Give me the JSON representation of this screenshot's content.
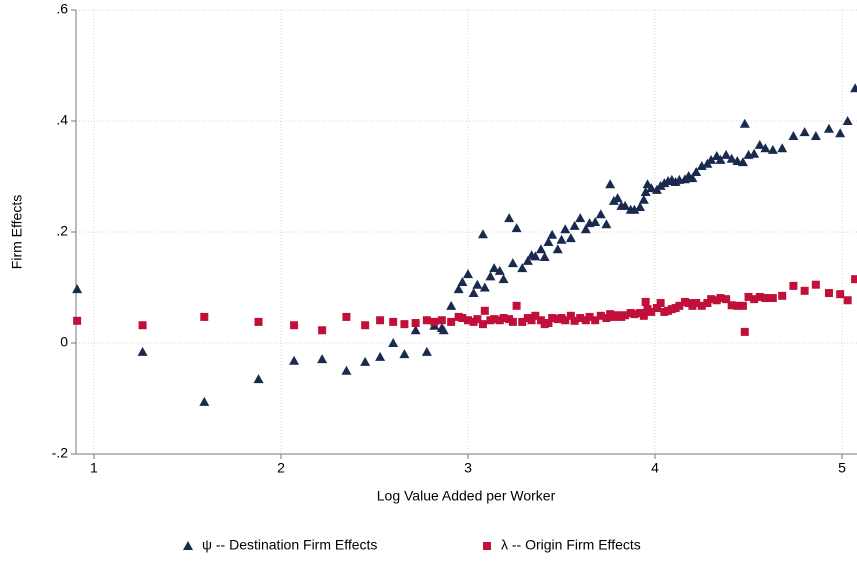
{
  "chart_data": {
    "type": "scatter",
    "xlabel": "Log Value Added per Worker",
    "ylabel": "Firm Effects",
    "xlim": [
      0.904,
      5.08
    ],
    "ylim": [
      -0.2,
      0.6
    ],
    "xticks": [
      1,
      2,
      3,
      4,
      5
    ],
    "yticks": [
      {
        "value": -0.2,
        "label": "-.2"
      },
      0,
      {
        "value": 0.2,
        "label": ".2"
      },
      {
        "value": 0.4,
        "label": ".4"
      },
      {
        "value": 0.6,
        "label": ".6"
      }
    ],
    "grid": true,
    "legend": "bottom",
    "series": [
      {
        "name": "ψ -- Destination Firm Effects",
        "color": "#1a2a4f",
        "marker": "triangle",
        "x": [
          0.91,
          1.26,
          1.59,
          1.88,
          2.07,
          2.22,
          2.35,
          2.45,
          2.53,
          2.6,
          2.66,
          2.72,
          2.78,
          2.82,
          2.86,
          2.87,
          2.91,
          2.95,
          2.97,
          3.0,
          3.03,
          3.05,
          3.08,
          3.09,
          3.12,
          3.14,
          3.17,
          3.19,
          3.22,
          3.24,
          3.26,
          3.29,
          3.32,
          3.34,
          3.36,
          3.39,
          3.41,
          3.43,
          3.45,
          3.48,
          3.5,
          3.52,
          3.55,
          3.57,
          3.6,
          3.63,
          3.65,
          3.68,
          3.71,
          3.74,
          3.76,
          3.78,
          3.8,
          3.82,
          3.84,
          3.87,
          3.89,
          3.92,
          3.94,
          3.95,
          3.96,
          3.98,
          4.01,
          4.03,
          4.05,
          4.07,
          4.09,
          4.11,
          4.13,
          4.16,
          4.18,
          4.2,
          4.22,
          4.25,
          4.28,
          4.3,
          4.33,
          4.35,
          4.38,
          4.41,
          4.44,
          4.47,
          4.48,
          4.5,
          4.53,
          4.56,
          4.59,
          4.63,
          4.68,
          4.74,
          4.8,
          4.86,
          4.93,
          4.99,
          5.03,
          5.07
        ],
        "values": [
          0.097,
          -0.016,
          -0.106,
          -0.065,
          -0.032,
          -0.029,
          -0.05,
          -0.034,
          -0.025,
          0.0,
          -0.02,
          0.023,
          -0.016,
          0.031,
          0.027,
          0.023,
          0.067,
          0.097,
          0.11,
          0.124,
          0.09,
          0.105,
          0.196,
          0.1,
          0.12,
          0.135,
          0.13,
          0.115,
          0.225,
          0.144,
          0.207,
          0.135,
          0.148,
          0.158,
          0.156,
          0.169,
          0.155,
          0.182,
          0.195,
          0.169,
          0.186,
          0.205,
          0.189,
          0.211,
          0.225,
          0.205,
          0.216,
          0.218,
          0.232,
          0.214,
          0.286,
          0.256,
          0.261,
          0.247,
          0.247,
          0.24,
          0.24,
          0.245,
          0.258,
          0.272,
          0.286,
          0.279,
          0.276,
          0.283,
          0.288,
          0.292,
          0.294,
          0.29,
          0.294,
          0.295,
          0.301,
          0.297,
          0.308,
          0.319,
          0.323,
          0.33,
          0.337,
          0.33,
          0.339,
          0.332,
          0.328,
          0.326,
          0.395,
          0.339,
          0.341,
          0.357,
          0.351,
          0.348,
          0.351,
          0.373,
          0.38,
          0.373,
          0.386,
          0.378,
          0.4,
          0.459
        ]
      },
      {
        "name": "λ -- Origin Firm Effects",
        "color": "#c0103a",
        "marker": "square",
        "x": [
          0.91,
          1.26,
          1.59,
          1.88,
          2.07,
          2.22,
          2.35,
          2.45,
          2.53,
          2.6,
          2.66,
          2.72,
          2.78,
          2.82,
          2.86,
          2.91,
          2.95,
          2.97,
          3.0,
          3.03,
          3.05,
          3.08,
          3.09,
          3.12,
          3.14,
          3.17,
          3.19,
          3.22,
          3.24,
          3.26,
          3.29,
          3.32,
          3.34,
          3.36,
          3.39,
          3.41,
          3.43,
          3.45,
          3.48,
          3.5,
          3.52,
          3.55,
          3.57,
          3.6,
          3.63,
          3.65,
          3.68,
          3.71,
          3.74,
          3.76,
          3.78,
          3.8,
          3.82,
          3.84,
          3.87,
          3.89,
          3.92,
          3.94,
          3.95,
          3.96,
          3.98,
          4.01,
          4.03,
          4.05,
          4.07,
          4.09,
          4.11,
          4.13,
          4.16,
          4.18,
          4.2,
          4.22,
          4.25,
          4.28,
          4.3,
          4.33,
          4.35,
          4.38,
          4.41,
          4.44,
          4.47,
          4.48,
          4.5,
          4.53,
          4.56,
          4.59,
          4.63,
          4.68,
          4.74,
          4.8,
          4.86,
          4.93,
          4.99,
          5.03,
          5.07
        ],
        "values": [
          0.04,
          0.032,
          0.047,
          0.038,
          0.032,
          0.023,
          0.047,
          0.032,
          0.041,
          0.038,
          0.034,
          0.036,
          0.041,
          0.038,
          0.041,
          0.038,
          0.047,
          0.045,
          0.041,
          0.038,
          0.043,
          0.034,
          0.058,
          0.041,
          0.043,
          0.041,
          0.045,
          0.043,
          0.038,
          0.067,
          0.038,
          0.045,
          0.041,
          0.049,
          0.041,
          0.034,
          0.036,
          0.045,
          0.043,
          0.045,
          0.041,
          0.049,
          0.04,
          0.045,
          0.041,
          0.047,
          0.041,
          0.049,
          0.045,
          0.052,
          0.047,
          0.05,
          0.047,
          0.05,
          0.054,
          0.052,
          0.054,
          0.049,
          0.074,
          0.061,
          0.056,
          0.063,
          0.072,
          0.056,
          0.058,
          0.061,
          0.063,
          0.067,
          0.074,
          0.072,
          0.067,
          0.072,
          0.067,
          0.072,
          0.079,
          0.077,
          0.081,
          0.079,
          0.068,
          0.067,
          0.067,
          0.02,
          0.083,
          0.079,
          0.083,
          0.081,
          0.081,
          0.085,
          0.103,
          0.094,
          0.105,
          0.09,
          0.088,
          0.077,
          0.115
        ]
      }
    ]
  }
}
